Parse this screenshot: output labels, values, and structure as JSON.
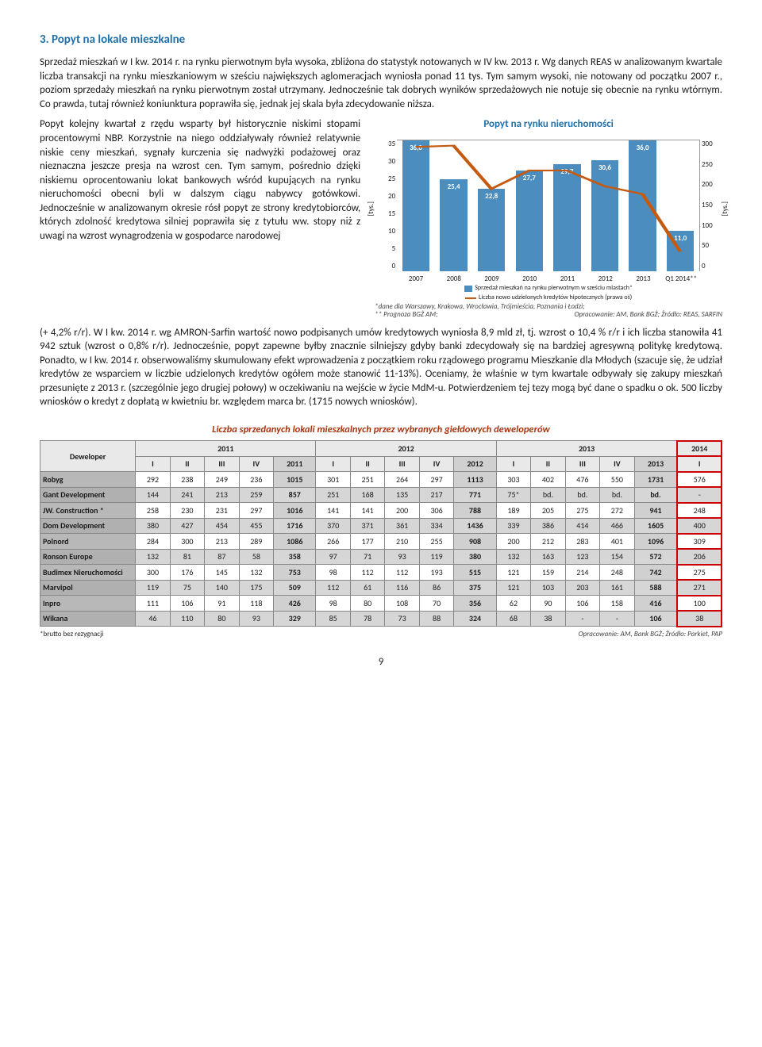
{
  "heading": "3.  Popyt na lokale mieszkalne",
  "p1": "Sprzedaż mieszkań w I kw. 2014 r. na rynku pierwotnym była wysoka, zbliżona do statystyk notowanych w IV kw. 2013 r. Wg danych REAS w analizowanym kwartale liczba transakcji na rynku mieszkaniowym w sześciu największych aglomeracjach wyniosła ponad 11 tys. Tym samym wysoki, nie notowany od początku 2007 r., poziom sprzedaży mieszkań na rynku pierwotnym został utrzymany. Jednocześnie tak dobrych wyników sprzedażowych nie notuje się obecnie na rynku wtórnym. Co prawda, tutaj również koniunktura poprawiła się, jednak jej skala była zdecydowanie niższa.",
  "p2_left": "Popyt kolejny kwartał z rzędu wsparty był historycznie niskimi stopami procentowymi NBP. Korzystnie na niego oddziaływały również relatywnie niskie ceny mieszkań, sygnały kurczenia się nadwyżki podażowej oraz nieznaczna jeszcze presja na wzrost cen. Tym samym, pośrednio dzięki niskiemu oprocentowaniu lokat bankowych wśród kupujących na rynku nieruchomości obecni byli w dalszym ciągu nabywcy gotówkowi. Jednocześnie w analizowanym okresie rósł popyt ze strony kredytobiorców, których zdolność kredytowa silniej poprawiła się z tytułu ww. stopy niż z uwagi na wzrost wynagrodzenia w gospodarce narodowej ",
  "p3": "(+ 4,2% r/r). W I kw. 2014 r. wg AMRON-Sarfin wartość nowo podpisanych umów kredytowych wyniosła 8,9 mld zł, tj. wzrost o 10,4 % r/r i ich liczba stanowiła 41 942 sztuk (wzrost o 0,8% r/r). Jednocześnie, popyt zapewne byłby znacznie silniejszy gdyby banki zdecydowały się na bardziej agresywną politykę kredytową. Ponadto, w I kw. 2014 r. obserwowaliśmy skumulowany efekt wprowadzenia z początkiem roku rządowego programu Mieszkanie dla Młodych (szacuje się, że udział kredytów ze wsparciem w liczbie udzielonych kredytów ogółem może stanowić 11-13%). Oceniamy, że właśnie w tym kwartale odbywały się zakupy mieszkań przesunięte z 2013 r. (szczególnie jego drugiej połowy) w oczekiwaniu na wejście w życie MdM-u. Potwierdzeniem tej tezy mogą być dane o spadku o ok. 500 liczby wniosków o kredyt z dopłatą w kwietniu br. względem marca br. (1715 nowych wniosków).",
  "chart": {
    "title": "Popyt na rynku nieruchomości",
    "y_left_label": "[tys.]",
    "y_right_label": "[tys.]",
    "y_left_ticks": [
      "35",
      "30",
      "25",
      "20",
      "15",
      "10",
      "5",
      "0"
    ],
    "y_right_ticks": [
      "300",
      "250",
      "200",
      "150",
      "100",
      "50",
      "0"
    ],
    "x_labels": [
      "2007",
      "2008",
      "2009",
      "2010",
      "2011",
      "2012",
      "2013",
      "Q1 2014**"
    ],
    "bars": [
      {
        "value": "36,0",
        "h_pct": 100
      },
      {
        "value": "25,4",
        "h_pct": 70
      },
      {
        "value": "22,8",
        "h_pct": 63
      },
      {
        "value": "27,7",
        "h_pct": 77
      },
      {
        "value": "29,7",
        "h_pct": 82
      },
      {
        "value": "30,6",
        "h_pct": 85
      },
      {
        "value": "36,0",
        "h_pct": 100
      },
      {
        "value": "11,0",
        "h_pct": 31
      }
    ],
    "bar_color": "#4A8DBE",
    "line_color": "#C55A11",
    "line_points_pct": [
      {
        "x": 6.25,
        "y": 5
      },
      {
        "x": 18.75,
        "y": 4
      },
      {
        "x": 31.25,
        "y": 37
      },
      {
        "x": 43.75,
        "y": 23
      },
      {
        "x": 56.25,
        "y": 23
      },
      {
        "x": 68.75,
        "y": 35
      },
      {
        "x": 81.25,
        "y": 41
      },
      {
        "x": 93.75,
        "y": 85
      }
    ],
    "legend1": "Sprzedaż mieszkań na rynku pierwotnym w sześciu miastach*",
    "legend2": "Liczba nowo udzielonych kredytów hipotecznych (prawa oś)",
    "footnote1": "*dane dla Warszawy, Krakowa, Wrocławia, Trójmieścia, Poznania i Łodzi;",
    "footnote2": "** Prognoza BGŻ AM;",
    "footnote_src": "Opracowanie: AM, Bank BGŻ; Źródło: REAS, SARFIN"
  },
  "table": {
    "title": "Liczba sprzedanych lokali mieszkalnych przez wybranych giełdowych deweloperów",
    "dev_header": "Deweloper",
    "year_groups": [
      "2011",
      "2012",
      "2013",
      "2014"
    ],
    "quarters": [
      "I",
      "II",
      "III",
      "IV"
    ],
    "rows": [
      {
        "name": "Robyg",
        "q2011": [
          "292",
          "238",
          "249",
          "236"
        ],
        "t2011": "1015",
        "q2012": [
          "301",
          "251",
          "264",
          "297"
        ],
        "t2012": "1113",
        "q2013": [
          "303",
          "402",
          "476",
          "550"
        ],
        "t2013": "1731",
        "q2014": "576"
      },
      {
        "name": "Gant Development",
        "q2011": [
          "144",
          "241",
          "213",
          "259"
        ],
        "t2011": "857",
        "q2012": [
          "251",
          "168",
          "135",
          "217"
        ],
        "t2012": "771",
        "q2013": [
          "75*",
          "bd.",
          "bd.",
          "bd."
        ],
        "t2013": "bd.",
        "q2014": "-"
      },
      {
        "name": "JW. Construction *",
        "q2011": [
          "258",
          "230",
          "231",
          "297"
        ],
        "t2011": "1016",
        "q2012": [
          "141",
          "141",
          "200",
          "306"
        ],
        "t2012": "788",
        "q2013": [
          "189",
          "205",
          "275",
          "272"
        ],
        "t2013": "941",
        "q2014": "248"
      },
      {
        "name": "Dom Development",
        "q2011": [
          "380",
          "427",
          "454",
          "455"
        ],
        "t2011": "1716",
        "q2012": [
          "370",
          "371",
          "361",
          "334"
        ],
        "t2012": "1436",
        "q2013": [
          "339",
          "386",
          "414",
          "466"
        ],
        "t2013": "1605",
        "q2014": "400"
      },
      {
        "name": "Polnord",
        "q2011": [
          "284",
          "300",
          "213",
          "289"
        ],
        "t2011": "1086",
        "q2012": [
          "266",
          "177",
          "210",
          "255"
        ],
        "t2012": "908",
        "q2013": [
          "200",
          "212",
          "283",
          "401"
        ],
        "t2013": "1096",
        "q2014": "309"
      },
      {
        "name": "Ronson Europe",
        "q2011": [
          "132",
          "81",
          "87",
          "58"
        ],
        "t2011": "358",
        "q2012": [
          "97",
          "71",
          "93",
          "119"
        ],
        "t2012": "380",
        "q2013": [
          "132",
          "163",
          "123",
          "154"
        ],
        "t2013": "572",
        "q2014": "206"
      },
      {
        "name": "Budimex Nieruchomości",
        "q2011": [
          "300",
          "176",
          "145",
          "132"
        ],
        "t2011": "753",
        "q2012": [
          "98",
          "112",
          "112",
          "193"
        ],
        "t2012": "515",
        "q2013": [
          "121",
          "159",
          "214",
          "248"
        ],
        "t2013": "742",
        "q2014": "275"
      },
      {
        "name": "Marvipol",
        "q2011": [
          "119",
          "75",
          "140",
          "175"
        ],
        "t2011": "509",
        "q2012": [
          "112",
          "61",
          "116",
          "86"
        ],
        "t2012": "375",
        "q2013": [
          "121",
          "103",
          "203",
          "161"
        ],
        "t2013": "588",
        "q2014": "271"
      },
      {
        "name": "Inpro",
        "q2011": [
          "111",
          "106",
          "91",
          "118"
        ],
        "t2011": "426",
        "q2012": [
          "98",
          "80",
          "108",
          "70"
        ],
        "t2012": "356",
        "q2013": [
          "62",
          "90",
          "106",
          "158"
        ],
        "t2013": "416",
        "q2014": "100"
      },
      {
        "name": "Wikana",
        "q2011": [
          "46",
          "110",
          "80",
          "93"
        ],
        "t2011": "329",
        "q2012": [
          "85",
          "78",
          "73",
          "88"
        ],
        "t2012": "324",
        "q2013": [
          "68",
          "38",
          "-",
          "-"
        ],
        "t2013": "106",
        "q2014": "38"
      }
    ],
    "footnote_left": "*brutto bez rezygnacji",
    "footnote_right": "Opracowanie: AM, Bank BGŻ;  Źródło: Parkiet, PAP"
  },
  "page_number": "9"
}
